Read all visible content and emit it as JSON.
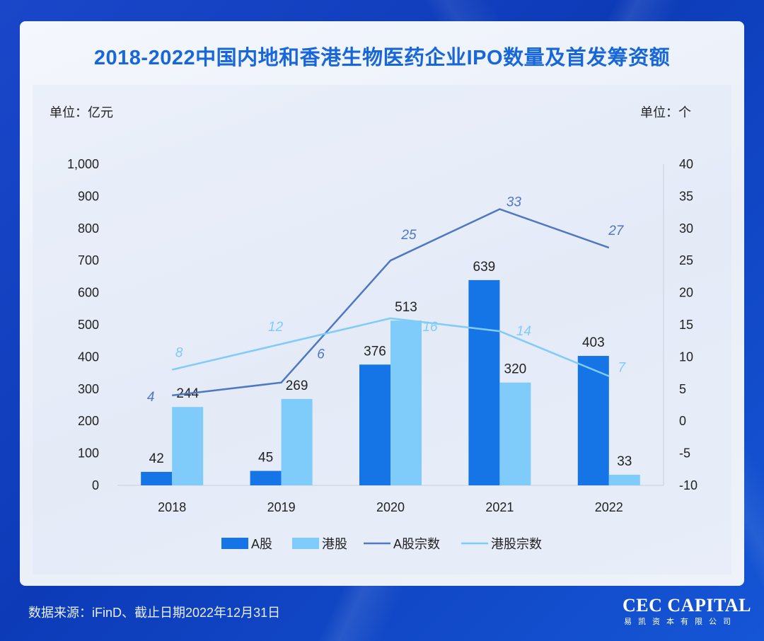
{
  "title": "2018-2022中国内地和香港生物医药企业IPO数量及首发筹资额",
  "unit_left": "单位：亿元",
  "unit_right": "单位：个",
  "source": "数据来源：iFinD、截止日期2022年12月31日",
  "logo": {
    "main": "CEC CAPITAL",
    "sub": "易凯资本有限公司"
  },
  "colors": {
    "a_bar": "#1575e6",
    "hk_bar": "#7fcbfa",
    "a_line": "#4e78c3",
    "hk_line": "#7fcbfa"
  },
  "chart_data": {
    "type": "bar",
    "categories": [
      "2018",
      "2019",
      "2020",
      "2021",
      "2022"
    ],
    "series": [
      {
        "name": "A股",
        "type": "bar",
        "axis": "left",
        "values": [
          42,
          45,
          376,
          639,
          403
        ]
      },
      {
        "name": "港股",
        "type": "bar",
        "axis": "left",
        "values": [
          244,
          269,
          513,
          320,
          33
        ]
      },
      {
        "name": "A股宗数",
        "type": "line",
        "axis": "right",
        "values": [
          4,
          6,
          25,
          33,
          27
        ]
      },
      {
        "name": "港股宗数",
        "type": "line",
        "axis": "right",
        "values": [
          8,
          12,
          16,
          14,
          7
        ]
      }
    ],
    "y_left": {
      "min": 0,
      "max": 1000,
      "ticks": [
        "0",
        "100",
        "200",
        "300",
        "400",
        "500",
        "600",
        "700",
        "800",
        "900",
        "1,000"
      ]
    },
    "y_right": {
      "min": -10,
      "max": 40,
      "ticks": [
        "-10",
        "-5",
        "0",
        "5",
        "10",
        "15",
        "20",
        "25",
        "30",
        "35",
        "40"
      ]
    },
    "legend": [
      "A股",
      "港股",
      "A股宗数",
      "港股宗数"
    ],
    "legend_position": "bottom"
  }
}
